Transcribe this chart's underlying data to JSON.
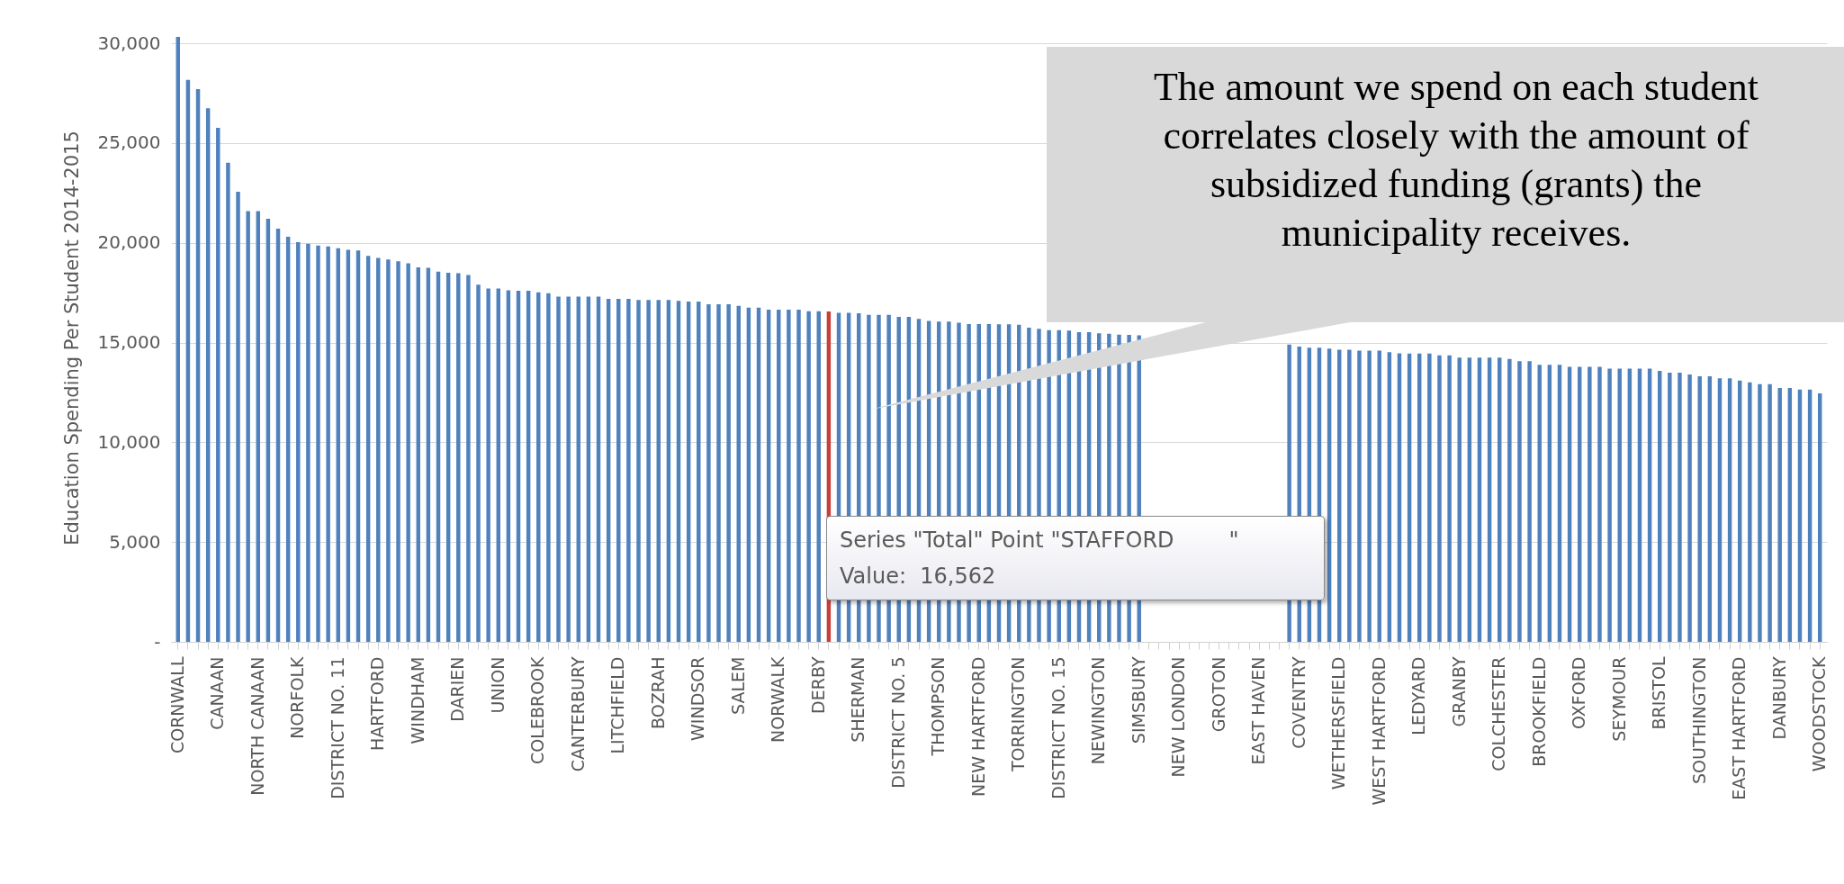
{
  "chart_data": {
    "type": "bar",
    "ylabel": "Education Spending Per Student 2014-2015",
    "categories": [
      "CORNWALL",
      null,
      null,
      null,
      "CANAAN",
      null,
      null,
      null,
      "NORTH CANAAN",
      null,
      null,
      null,
      "NORFOLK",
      null,
      null,
      null,
      "DISTRICT NO. 11",
      null,
      null,
      null,
      "HARTFORD",
      null,
      null,
      null,
      "WINDHAM",
      null,
      null,
      null,
      "DARIEN",
      null,
      null,
      null,
      "UNION",
      null,
      null,
      null,
      "COLEBROOK",
      null,
      null,
      null,
      "CANTERBURY",
      null,
      null,
      null,
      "LITCHFIELD",
      null,
      null,
      null,
      "BOZRAH",
      null,
      null,
      null,
      "WINDSOR",
      null,
      null,
      null,
      "SALEM",
      null,
      null,
      null,
      "NORWALK",
      null,
      null,
      null,
      "DERBY",
      null,
      null,
      null,
      "SHERMAN",
      null,
      null,
      null,
      "DISTRICT NO. 5",
      null,
      null,
      null,
      "THOMPSON",
      null,
      null,
      null,
      "NEW HARTFORD",
      null,
      null,
      null,
      "TORRINGTON",
      null,
      null,
      null,
      "DISTRICT NO. 15",
      null,
      null,
      null,
      "NEWINGTON",
      null,
      null,
      null,
      "SIMSBURY",
      null,
      null,
      null,
      "NEW LONDON",
      null,
      null,
      null,
      "GROTON",
      null,
      null,
      null,
      "EAST HAVEN",
      null,
      null,
      null,
      "COVENTRY",
      null,
      null,
      null,
      "WETHERSFIELD",
      null,
      null,
      null,
      "WEST HARTFORD",
      null,
      null,
      null,
      "LEDYARD",
      null,
      null,
      null,
      "GRANBY",
      null,
      null,
      null,
      "COLCHESTER",
      null,
      null,
      null,
      "BROOKFIELD",
      null,
      null,
      null,
      "OXFORD",
      null,
      null,
      null,
      "SEYMOUR",
      null,
      null,
      null,
      "BRISTOL",
      null,
      null,
      null,
      "SOUTHINGTON",
      null,
      null,
      null,
      "EAST HARTFORD",
      null,
      null,
      null,
      "DANBURY",
      null,
      null,
      null,
      "WOODSTOCK"
    ],
    "values": [
      30320,
      28170,
      27700,
      26740,
      25760,
      24010,
      22560,
      21590,
      21590,
      21200,
      20710,
      20300,
      20030,
      19950,
      19860,
      19820,
      19730,
      19650,
      19610,
      19350,
      19240,
      19160,
      19070,
      18970,
      18770,
      18750,
      18560,
      18500,
      18480,
      18390,
      17900,
      17710,
      17710,
      17620,
      17600,
      17600,
      17520,
      17470,
      17300,
      17300,
      17300,
      17300,
      17300,
      17190,
      17190,
      17190,
      17130,
      17130,
      17130,
      17130,
      17090,
      17050,
      17050,
      16920,
      16920,
      16920,
      16840,
      16750,
      16750,
      16650,
      16650,
      16650,
      16650,
      16570,
      16570,
      16562,
      16490,
      16490,
      16470,
      16390,
      16390,
      16390,
      16290,
      16290,
      16190,
      16090,
      16050,
      16050,
      15990,
      15930,
      15930,
      15930,
      15910,
      15910,
      15890,
      15750,
      15690,
      15620,
      15620,
      15600,
      15520,
      15520,
      15460,
      15440,
      15400,
      15380,
      15360,
      null,
      null,
      null,
      null,
      null,
      null,
      null,
      null,
      null,
      null,
      null,
      null,
      null,
      null,
      14900,
      14800,
      14740,
      14740,
      14700,
      14640,
      14640,
      14600,
      14600,
      14600,
      14520,
      14460,
      14450,
      14450,
      14450,
      14360,
      14360,
      14250,
      14250,
      14250,
      14250,
      14250,
      14180,
      14070,
      14070,
      13880,
      13880,
      13880,
      13780,
      13780,
      13780,
      13780,
      13690,
      13690,
      13690,
      13690,
      13690,
      13580,
      13490,
      13490,
      13400,
      13310,
      13310,
      13210,
      13210,
      13100,
      13010,
      12920,
      12920,
      12720,
      12720,
      12640,
      12640,
      12450
    ],
    "colors": [
      "#4f81bd",
      "#4f81bd",
      "#4f81bd",
      "#4f81bd",
      "#4f81bd",
      "#4f81bd",
      "#4f81bd",
      "#4f81bd",
      "#4f81bd",
      "#4f81bd",
      "#4f81bd",
      "#4f81bd",
      "#4f81bd",
      "#4f81bd",
      "#4f81bd",
      "#4f81bd",
      "#4f81bd",
      "#4f81bd",
      "#4f81bd",
      "#4f81bd",
      "#4f81bd",
      "#4f81bd",
      "#4f81bd",
      "#4f81bd",
      "#4f81bd",
      "#4f81bd",
      "#4f81bd",
      "#4f81bd",
      "#4f81bd",
      "#4f81bd",
      "#4f81bd",
      "#4f81bd",
      "#4f81bd",
      "#4f81bd",
      "#4f81bd",
      "#4f81bd",
      "#4f81bd",
      "#4f81bd",
      "#4f81bd",
      "#4f81bd",
      "#4f81bd",
      "#4f81bd",
      "#4f81bd",
      "#4f81bd",
      "#4f81bd",
      "#4f81bd",
      "#4f81bd",
      "#4f81bd",
      "#4f81bd",
      "#4f81bd",
      "#4f81bd",
      "#4f81bd",
      "#4f81bd",
      "#4f81bd",
      "#4f81bd",
      "#4f81bd",
      "#4f81bd",
      "#4f81bd",
      "#4f81bd",
      "#4f81bd",
      "#4f81bd",
      "#4f81bd",
      "#4f81bd",
      "#4f81bd",
      "#4f81bd",
      "#c8403a",
      "#4f81bd",
      "#4f81bd",
      "#4f81bd",
      "#4f81bd",
      "#4f81bd",
      "#4f81bd",
      "#4f81bd",
      "#4f81bd",
      "#4f81bd",
      "#4f81bd",
      "#4f81bd",
      "#4f81bd",
      "#4f81bd",
      "#4f81bd",
      "#4f81bd",
      "#4f81bd",
      "#4f81bd",
      "#4f81bd",
      "#4f81bd",
      "#4f81bd",
      "#4f81bd",
      "#4f81bd",
      "#4f81bd",
      "#4f81bd",
      "#4f81bd",
      "#4f81bd",
      "#4f81bd",
      "#4f81bd",
      "#4f81bd",
      "#4f81bd",
      "#4f81bd",
      "#4f81bd",
      "#4f81bd",
      "#4f81bd",
      "#4f81bd",
      "#4f81bd",
      "#4f81bd",
      "#4f81bd",
      "#4f81bd",
      "#4f81bd",
      "#4f81bd",
      "#4f81bd",
      "#4f81bd",
      "#4f81bd",
      "#4f81bd",
      "#4f81bd",
      "#4f81bd",
      "#4f81bd",
      "#4f81bd",
      "#4f81bd",
      "#4f81bd",
      "#4f81bd",
      "#4f81bd",
      "#4f81bd",
      "#4f81bd",
      "#4f81bd",
      "#4f81bd",
      "#4f81bd",
      "#4f81bd",
      "#4f81bd",
      "#4f81bd",
      "#4f81bd",
      "#4f81bd",
      "#4f81bd",
      "#4f81bd",
      "#4f81bd",
      "#4f81bd",
      "#4f81bd",
      "#4f81bd",
      "#4f81bd",
      "#4f81bd",
      "#4f81bd",
      "#4f81bd",
      "#4f81bd",
      "#4f81bd",
      "#4f81bd",
      "#4f81bd",
      "#4f81bd",
      "#4f81bd",
      "#4f81bd",
      "#4f81bd",
      "#4f81bd",
      "#4f81bd",
      "#4f81bd",
      "#4f81bd",
      "#4f81bd",
      "#4f81bd",
      "#4f81bd",
      "#4f81bd",
      "#4f81bd",
      "#4f81bd",
      "#4f81bd",
      "#4f81bd",
      "#4f81bd",
      "#4f81bd",
      "#4f81bd",
      "#4f81bd",
      "#4f81bd",
      "#4f81bd"
    ],
    "ylim": [
      0,
      30500
    ],
    "yticks": [
      {
        "value": 0,
        "label": "-"
      },
      {
        "value": 5000,
        "label": "5,000"
      },
      {
        "value": 10000,
        "label": "10,000"
      },
      {
        "value": 15000,
        "label": "15,000"
      },
      {
        "value": 20000,
        "label": "20,000"
      },
      {
        "value": 25000,
        "label": "25,000"
      },
      {
        "value": 30000,
        "label": "30,000"
      }
    ],
    "grid": "y",
    "annotations": [
      "The amount we spend on each student correlates closely with the amount of subsidized funding (grants) the municipality receives.",
      "Series \"Total\" Point \"STAFFORD        \"",
      "Value:  16,562"
    ]
  }
}
